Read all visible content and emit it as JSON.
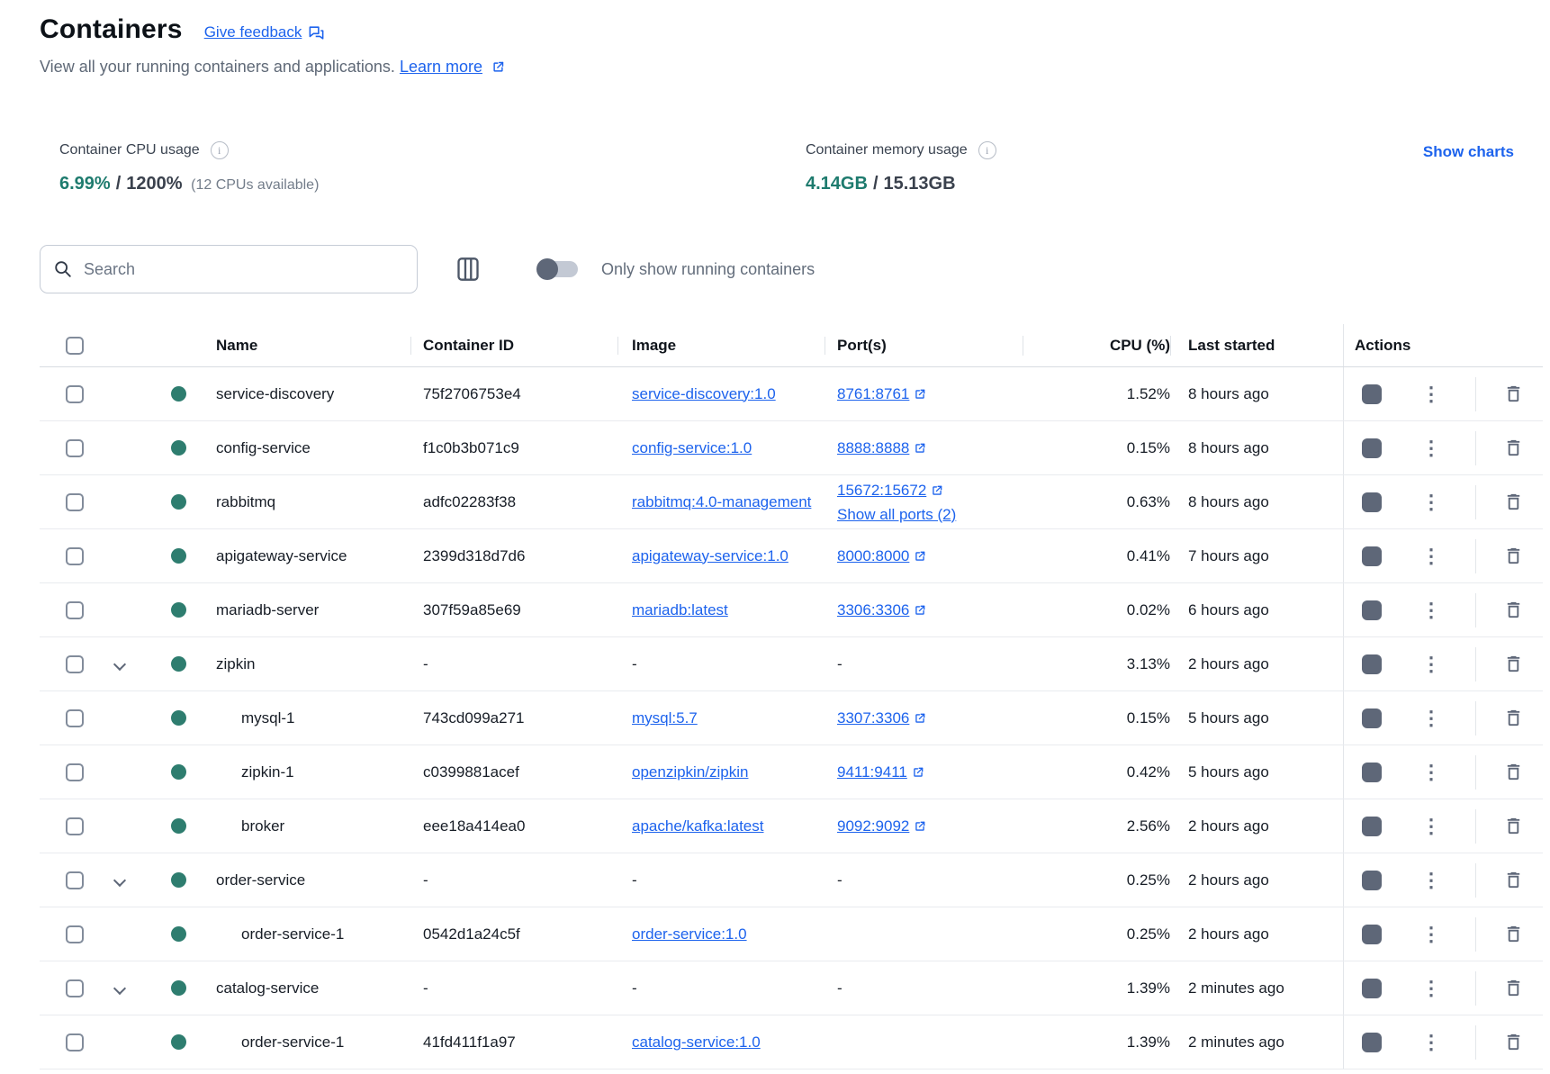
{
  "header": {
    "title": "Containers",
    "feedback_label": "Give feedback",
    "subtitle": "View all your running containers and applications.",
    "learn_more_label": "Learn more"
  },
  "stats": {
    "cpu": {
      "label": "Container CPU usage",
      "used": "6.99%",
      "sep": "/",
      "total": "1200%",
      "note": "(12 CPUs available)"
    },
    "memory": {
      "label": "Container memory usage",
      "used": "4.14GB",
      "sep": "/",
      "total": "15.13GB"
    },
    "show_charts_label": "Show charts"
  },
  "controls": {
    "search_placeholder": "Search",
    "toggle_label": "Only show running containers",
    "toggle_state": "off"
  },
  "table": {
    "columns": {
      "name": "Name",
      "id": "Container ID",
      "image": "Image",
      "ports": "Port(s)",
      "cpu": "CPU (%)",
      "last_started": "Last started",
      "actions": "Actions"
    },
    "rows": [
      {
        "kind": "single",
        "running": true,
        "name": "service-discovery",
        "id": "75f2706753e4",
        "image": "service-discovery:1.0",
        "image_link": true,
        "ports": [
          {
            "label": "8761:8761",
            "external": true,
            "name": "port-link"
          }
        ],
        "cpu": "1.52%",
        "last_started": "8 hours ago"
      },
      {
        "kind": "single",
        "running": true,
        "name": "config-service",
        "id": "f1c0b3b071c9",
        "image": "config-service:1.0",
        "image_link": true,
        "ports": [
          {
            "label": "8888:8888",
            "external": true,
            "name": "port-link"
          }
        ],
        "cpu": "0.15%",
        "last_started": "8 hours ago"
      },
      {
        "kind": "single",
        "running": true,
        "name": "rabbitmq",
        "id": "adfc02283f38",
        "image": "rabbitmq:4.0-management",
        "image_link": true,
        "ports": [
          {
            "label": "15672:15672",
            "external": true,
            "name": "port-link"
          },
          {
            "label": "Show all ports (2)",
            "external": false,
            "name": "show-all-ports-link"
          }
        ],
        "cpu": "0.63%",
        "last_started": "8 hours ago"
      },
      {
        "kind": "single",
        "running": true,
        "name": "apigateway-service",
        "id": "2399d318d7d6",
        "image": "apigateway-service:1.0",
        "image_link": true,
        "ports": [
          {
            "label": "8000:8000",
            "external": true,
            "name": "port-link"
          }
        ],
        "cpu": "0.41%",
        "last_started": "7 hours ago"
      },
      {
        "kind": "single",
        "running": true,
        "name": "mariadb-server",
        "id": "307f59a85e69",
        "image": "mariadb:latest",
        "image_link": true,
        "ports": [
          {
            "label": "3306:3306",
            "external": true,
            "name": "port-link"
          }
        ],
        "cpu": "0.02%",
        "last_started": "6 hours ago"
      },
      {
        "kind": "group",
        "running": true,
        "name": "zipkin",
        "id": "-",
        "image": "-",
        "image_link": false,
        "ports_dash": true,
        "ports": [],
        "cpu": "3.13%",
        "last_started": "2 hours ago"
      },
      {
        "kind": "child",
        "running": true,
        "name": "mysql-1",
        "id": "743cd099a271",
        "image": "mysql:5.7",
        "image_link": true,
        "ports": [
          {
            "label": "3307:3306",
            "external": true,
            "name": "port-link"
          }
        ],
        "cpu": "0.15%",
        "last_started": "5 hours ago"
      },
      {
        "kind": "child",
        "running": true,
        "name": "zipkin-1",
        "id": "c0399881acef",
        "image": "openzipkin/zipkin",
        "image_link": true,
        "ports": [
          {
            "label": "9411:9411",
            "external": true,
            "name": "port-link"
          }
        ],
        "cpu": "0.42%",
        "last_started": "5 hours ago"
      },
      {
        "kind": "child",
        "running": true,
        "name": "broker",
        "id": "eee18a414ea0",
        "image": "apache/kafka:latest",
        "image_link": true,
        "ports": [
          {
            "label": "9092:9092",
            "external": true,
            "name": "port-link"
          }
        ],
        "cpu": "2.56%",
        "last_started": "2 hours ago"
      },
      {
        "kind": "group",
        "running": true,
        "name": "order-service",
        "id": "-",
        "image": "-",
        "image_link": false,
        "ports_dash": true,
        "ports": [],
        "cpu": "0.25%",
        "last_started": "2 hours ago"
      },
      {
        "kind": "child",
        "running": true,
        "name": "order-service-1",
        "id": "0542d1a24c5f",
        "image": "order-service:1.0",
        "image_link": true,
        "ports": [],
        "cpu": "0.25%",
        "last_started": "2 hours ago"
      },
      {
        "kind": "group",
        "running": true,
        "name": "catalog-service",
        "id": "-",
        "image": "-",
        "image_link": false,
        "ports_dash": true,
        "ports": [],
        "cpu": "1.39%",
        "last_started": "2 minutes ago"
      },
      {
        "kind": "child",
        "running": true,
        "name": "order-service-1",
        "id": "41fd411f1a97",
        "image": "catalog-service:1.0",
        "image_link": true,
        "ports": [],
        "cpu": "1.39%",
        "last_started": "2 minutes ago"
      }
    ]
  },
  "colors": {
    "accent_blue": "#1d63ed",
    "running_dot_green": "#2e7d6f",
    "usage_value_teal": "#1e7b6e",
    "action_icon_slate": "#5e6778"
  }
}
